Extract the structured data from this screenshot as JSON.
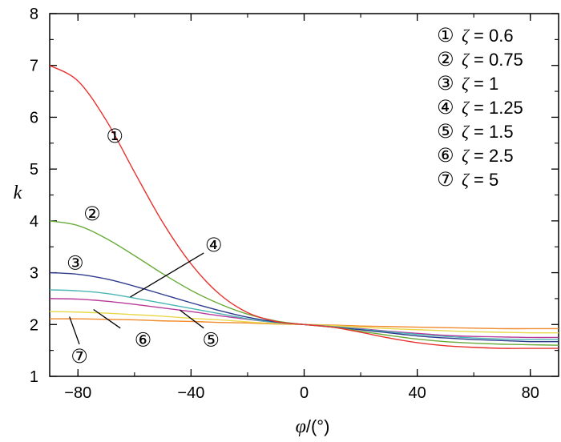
{
  "chart_data": {
    "type": "line",
    "xlabel_var": "φ",
    "xlabel_unit": "/(°)",
    "ylabel": "k",
    "xlim": [
      -90,
      90
    ],
    "ylim": [
      1,
      8
    ],
    "xticks": [
      -80,
      -40,
      0,
      40,
      80
    ],
    "xtick_labels": [
      "−80",
      "−40",
      "0",
      "40",
      "80"
    ],
    "yticks": [
      1,
      2,
      3,
      4,
      5,
      6,
      7,
      8
    ],
    "ytick_labels": [
      "1",
      "2",
      "3",
      "4",
      "5",
      "6",
      "7",
      "8"
    ],
    "grid": false,
    "legend_position": "top-right",
    "series": [
      {
        "marker": "①",
        "zeta": "0.6",
        "color": "#e8322e",
        "x": [
          -90,
          -80,
          -70,
          -60,
          -50,
          -40,
          -30,
          -20,
          -10,
          0,
          10,
          20,
          30,
          40,
          50,
          60,
          70,
          80,
          90
        ],
        "y": [
          7.0,
          6.7,
          5.94,
          4.94,
          3.97,
          3.17,
          2.59,
          2.23,
          2.06,
          2.0,
          1.95,
          1.85,
          1.74,
          1.65,
          1.59,
          1.56,
          1.54,
          1.54,
          1.54
        ]
      },
      {
        "marker": "②",
        "zeta": "0.75",
        "color": "#6aab3a",
        "x": [
          -90,
          -80,
          -70,
          -60,
          -50,
          -40,
          -30,
          -20,
          -10,
          0,
          10,
          20,
          30,
          40,
          50,
          60,
          70,
          80,
          90
        ],
        "y": [
          4.0,
          3.91,
          3.66,
          3.33,
          2.98,
          2.66,
          2.4,
          2.2,
          2.07,
          2.0,
          1.95,
          1.87,
          1.79,
          1.72,
          1.67,
          1.64,
          1.62,
          1.61,
          1.6
        ]
      },
      {
        "marker": "③",
        "zeta": "1",
        "color": "#2e3a8c",
        "x": [
          -90,
          -80,
          -70,
          -60,
          -50,
          -40,
          -30,
          -20,
          -10,
          0,
          10,
          20,
          30,
          40,
          50,
          60,
          70,
          80,
          90
        ],
        "y": [
          3.0,
          2.97,
          2.88,
          2.74,
          2.58,
          2.42,
          2.27,
          2.14,
          2.05,
          2.0,
          1.95,
          1.9,
          1.84,
          1.78,
          1.74,
          1.71,
          1.69,
          1.67,
          1.67
        ]
      },
      {
        "marker": "④",
        "zeta": "1.25",
        "color": "#4bb5b5",
        "x": [
          -90,
          -80,
          -70,
          -60,
          -50,
          -40,
          -30,
          -20,
          -10,
          0,
          10,
          20,
          30,
          40,
          50,
          60,
          70,
          80,
          90
        ],
        "y": [
          2.67,
          2.65,
          2.6,
          2.51,
          2.41,
          2.31,
          2.21,
          2.11,
          2.04,
          2.0,
          1.96,
          1.91,
          1.86,
          1.81,
          1.77,
          1.74,
          1.72,
          1.71,
          1.71
        ]
      },
      {
        "marker": "⑤",
        "zeta": "1.5",
        "color": "#b83a9a",
        "x": [
          -90,
          -80,
          -70,
          -60,
          -50,
          -40,
          -30,
          -20,
          -10,
          0,
          10,
          20,
          30,
          40,
          50,
          60,
          70,
          80,
          90
        ],
        "y": [
          2.5,
          2.49,
          2.45,
          2.39,
          2.32,
          2.25,
          2.17,
          2.1,
          2.04,
          2.0,
          1.96,
          1.92,
          1.87,
          1.83,
          1.79,
          1.77,
          1.76,
          1.75,
          1.75
        ]
      },
      {
        "marker": "⑥",
        "zeta": "2.5",
        "color": "#e8d84a",
        "x": [
          -90,
          -80,
          -70,
          -60,
          -50,
          -40,
          -30,
          -20,
          -10,
          0,
          10,
          20,
          30,
          40,
          50,
          60,
          70,
          80,
          90
        ],
        "y": [
          2.25,
          2.24,
          2.22,
          2.19,
          2.16,
          2.12,
          2.09,
          2.05,
          2.02,
          2.0,
          1.98,
          1.95,
          1.92,
          1.9,
          1.88,
          1.86,
          1.85,
          1.84,
          1.84
        ]
      },
      {
        "marker": "⑦",
        "zeta": "5",
        "color": "#f08a2a",
        "x": [
          -90,
          -80,
          -70,
          -60,
          -50,
          -40,
          -30,
          -20,
          -10,
          0,
          10,
          20,
          30,
          40,
          50,
          60,
          70,
          80,
          90
        ],
        "y": [
          2.11,
          2.11,
          2.1,
          2.09,
          2.07,
          2.06,
          2.04,
          2.03,
          2.01,
          2.0,
          1.99,
          1.97,
          1.96,
          1.95,
          1.94,
          1.93,
          1.92,
          1.92,
          1.92
        ]
      }
    ],
    "curve_labels": [
      {
        "marker": "①",
        "x": -67,
        "y": 5.65
      },
      {
        "marker": "②",
        "x": -75,
        "y": 4.15
      },
      {
        "marker": "③",
        "x": -81,
        "y": 3.2
      },
      {
        "marker": "④",
        "x": -32,
        "y": 3.55
      },
      {
        "marker": "⑤",
        "x": -33,
        "y": 1.72
      },
      {
        "marker": "⑥",
        "x": -57,
        "y": 1.72
      },
      {
        "marker": "⑦",
        "x": -79.5,
        "y": 1.4
      }
    ],
    "leader_lines": [
      {
        "from": [
          -61.5,
          2.53
        ],
        "to": [
          -35.5,
          3.38
        ]
      },
      {
        "from": [
          -44,
          2.28
        ],
        "to": [
          -35.5,
          1.93
        ]
      },
      {
        "from": [
          -74.5,
          2.29
        ],
        "to": [
          -65,
          1.93
        ]
      },
      {
        "from": [
          -83,
          2.15
        ],
        "to": [
          -79.5,
          1.62
        ]
      }
    ]
  }
}
